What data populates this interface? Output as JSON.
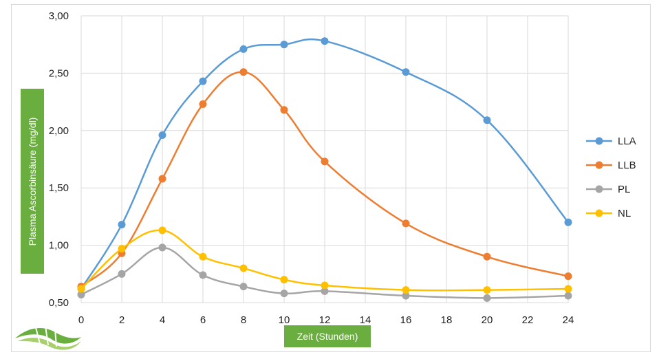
{
  "chart_data": {
    "type": "line",
    "xlabel": "Zeit (Stunden)",
    "ylabel": "Plasma Ascorbinsäure (mg/dl)",
    "xlim": [
      0,
      24
    ],
    "ylim": [
      0.5,
      3.0
    ],
    "x_ticks": [
      "0",
      "2",
      "4",
      "6",
      "8",
      "10",
      "12",
      "14",
      "16",
      "18",
      "20",
      "22",
      "24"
    ],
    "y_ticks": [
      "0,50",
      "1,00",
      "1,50",
      "2,00",
      "2,50",
      "3,00"
    ],
    "grid": true,
    "legend_position": "right",
    "series": [
      {
        "name": "LLA",
        "color": "#5b9bd5",
        "x": [
          0,
          2,
          4,
          6,
          8,
          10,
          12,
          16,
          20,
          24
        ],
        "values": [
          0.62,
          1.18,
          1.96,
          2.43,
          2.71,
          2.75,
          2.78,
          2.51,
          2.09,
          1.2
        ]
      },
      {
        "name": "LLB",
        "color": "#ed7d31",
        "x": [
          0,
          2,
          4,
          6,
          8,
          10,
          12,
          16,
          20,
          24
        ],
        "values": [
          0.64,
          0.93,
          1.58,
          2.23,
          2.51,
          2.18,
          1.73,
          1.19,
          0.9,
          0.73
        ]
      },
      {
        "name": "PL",
        "color": "#a5a5a5",
        "x": [
          0,
          2,
          4,
          6,
          8,
          10,
          12,
          16,
          20,
          24
        ],
        "values": [
          0.57,
          0.75,
          0.98,
          0.74,
          0.64,
          0.58,
          0.6,
          0.56,
          0.54,
          0.56
        ]
      },
      {
        "name": "NL",
        "color": "#ffc000",
        "x": [
          0,
          2,
          4,
          6,
          8,
          10,
          12,
          16,
          20,
          24
        ],
        "values": [
          0.62,
          0.97,
          1.13,
          0.9,
          0.8,
          0.7,
          0.65,
          0.61,
          0.61,
          0.62
        ]
      }
    ]
  },
  "logo": {
    "name": "dna-leaf-logo",
    "colors": [
      "#6aae3f",
      "#a7cf6a"
    ]
  }
}
